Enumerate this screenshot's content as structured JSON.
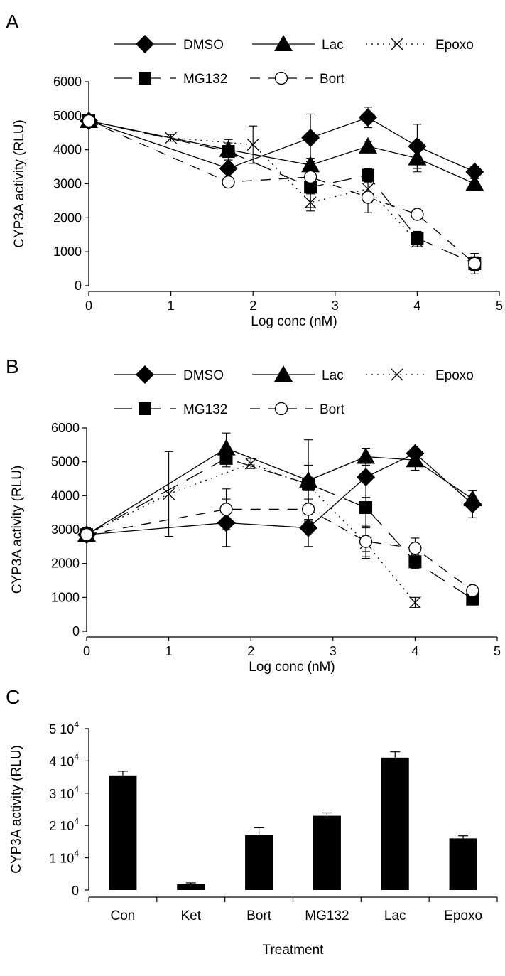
{
  "panels": [
    {
      "letter": "A"
    },
    {
      "letter": "B"
    },
    {
      "letter": "C"
    }
  ],
  "chart_data": [
    {
      "panel": "A",
      "type": "line",
      "xlabel": "Log conc (nM)",
      "ylabel": "CYP3A activity (RLU)",
      "xlim": [
        0,
        5
      ],
      "ylim": [
        0,
        6000
      ],
      "xticks": [
        "0",
        "1",
        "2",
        "3",
        "4",
        "5"
      ],
      "yticks": [
        "0",
        "1000",
        "2000",
        "3000",
        "4000",
        "5000",
        "6000"
      ],
      "legend": "top, two rows",
      "series": [
        {
          "name": "DMSO",
          "marker": "diamond",
          "line": "solid",
          "x": [
            0,
            1.7,
            2.7,
            3.4,
            4.0,
            4.7
          ],
          "y": [
            4850,
            3450,
            4350,
            4950,
            4100,
            3350
          ],
          "err": [
            150,
            150,
            700,
            300,
            650,
            150
          ]
        },
        {
          "name": "Lac",
          "marker": "triangle",
          "line": "solid",
          "x": [
            0,
            1.7,
            2.7,
            3.4,
            4.0,
            4.7
          ],
          "y": [
            4850,
            4000,
            3550,
            4100,
            3750,
            3000
          ],
          "err": [
            150,
            300,
            200,
            150,
            400,
            150
          ]
        },
        {
          "name": "Epoxo",
          "marker": "x",
          "line": "dotted",
          "x": [
            0,
            1.0,
            2.0,
            2.7,
            3.4,
            4.0
          ],
          "y": [
            4850,
            4350,
            4150,
            2450,
            2850,
            1300
          ],
          "err": [
            150,
            100,
            550,
            250,
            400,
            150
          ]
        },
        {
          "name": "MG132",
          "marker": "square",
          "line": "longdash",
          "x": [
            0,
            1.7,
            2.7,
            3.4,
            4.0,
            4.7
          ],
          "y": [
            4850,
            3950,
            2900,
            3250,
            1400,
            650
          ],
          "err": [
            150,
            250,
            600,
            200,
            200,
            300
          ]
        },
        {
          "name": "Bort",
          "marker": "circle-open",
          "line": "dash",
          "x": [
            0,
            1.7,
            2.7,
            3.4,
            4.0,
            4.7
          ],
          "y": [
            4850,
            3050,
            3200,
            2600,
            2100,
            650
          ],
          "err": [
            150,
            100,
            400,
            450,
            100,
            200
          ]
        }
      ]
    },
    {
      "panel": "B",
      "type": "line",
      "xlabel": "Log conc (nM)",
      "ylabel": "CYP3A activity (RLU)",
      "xlim": [
        0,
        5
      ],
      "ylim": [
        0,
        6000
      ],
      "xticks": [
        "0",
        "1",
        "2",
        "3",
        "4",
        "5"
      ],
      "yticks": [
        "0",
        "1000",
        "2000",
        "3000",
        "4000",
        "5000",
        "6000"
      ],
      "legend": "top, two rows",
      "series": [
        {
          "name": "DMSO",
          "marker": "diamond",
          "line": "solid",
          "x": [
            0,
            1.7,
            2.7,
            3.4,
            4.0,
            4.7
          ],
          "y": [
            2850,
            3200,
            3050,
            4550,
            5250,
            3750
          ],
          "err": [
            200,
            700,
            550,
            600,
            150,
            400
          ]
        },
        {
          "name": "Lac",
          "marker": "triangle",
          "line": "solid",
          "x": [
            0,
            1.7,
            2.7,
            3.4,
            4.0,
            4.7
          ],
          "y": [
            2850,
            5400,
            4450,
            5150,
            5050,
            3900
          ],
          "err": [
            200,
            450,
            1200,
            250,
            300,
            250
          ]
        },
        {
          "name": "Epoxo",
          "marker": "x",
          "line": "dotted",
          "x": [
            0,
            1.0,
            2.0,
            2.7,
            3.4,
            4.0
          ],
          "y": [
            2850,
            4050,
            4950,
            4300,
            2600,
            850
          ],
          "err": [
            200,
            1250,
            150,
            600,
            450,
            150
          ]
        },
        {
          "name": "MG132",
          "marker": "square",
          "line": "longdash",
          "x": [
            0,
            1.7,
            2.7,
            3.4,
            4.0,
            4.7
          ],
          "y": [
            2850,
            5100,
            4350,
            3650,
            2050,
            950
          ],
          "err": [
            200,
            250,
            200,
            1300,
            200,
            100
          ]
        },
        {
          "name": "Bort",
          "marker": "circle-open",
          "line": "dash",
          "x": [
            0,
            1.7,
            2.7,
            3.4,
            4.0,
            4.7
          ],
          "y": [
            2850,
            3600,
            3600,
            2650,
            2450,
            1200
          ],
          "err": [
            200,
            600,
            300,
            450,
            300,
            100
          ]
        }
      ]
    },
    {
      "panel": "C",
      "type": "bar",
      "xlabel": "Treatment",
      "ylabel": "CYP3A activity (RLU)",
      "ylim": [
        0,
        50000
      ],
      "yticks": [
        {
          "value": 0,
          "base": "0",
          "exp": ""
        },
        {
          "value": 10000,
          "base": "1 10",
          "exp": "4"
        },
        {
          "value": 20000,
          "base": "2 10",
          "exp": "4"
        },
        {
          "value": 30000,
          "base": "3 10",
          "exp": "4"
        },
        {
          "value": 40000,
          "base": "4 10",
          "exp": "4"
        },
        {
          "value": 50000,
          "base": "5 10",
          "exp": "4"
        }
      ],
      "categories": [
        "Con",
        "Ket",
        "Bort",
        "MG132",
        "Lac",
        "Epoxo"
      ],
      "values": [
        35500,
        1800,
        17000,
        23000,
        41000,
        16000
      ],
      "err": [
        1300,
        400,
        2300,
        900,
        1800,
        800
      ],
      "color": "#000000"
    }
  ]
}
